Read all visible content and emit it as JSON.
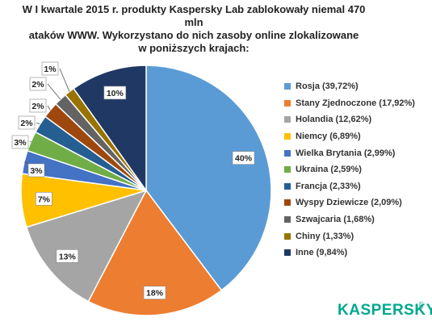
{
  "title_lines": [
    "W I kwartale 2015 r. produkty Kaspersky Lab zablokowały niemal 470 mln",
    "ataków WWW. Wykorzystano do nich zasoby online zlokalizowane",
    "w poniższych krajach:"
  ],
  "logo": {
    "text": "KASPERSKY",
    "sub": "lab"
  },
  "chart_data": {
    "type": "pie",
    "start_angle_deg": 0,
    "slices": [
      {
        "label": "Rosja (39,72%)",
        "value": 39.72,
        "pct_label": "40%",
        "color": "#5b9bd5"
      },
      {
        "label": "Stany Zjednoczone (17,92%)",
        "value": 17.92,
        "pct_label": "18%",
        "color": "#ed7d31"
      },
      {
        "label": "Holandia (12,62%)",
        "value": 12.62,
        "pct_label": "13%",
        "color": "#a5a5a5"
      },
      {
        "label": "Niemcy (6,89%)",
        "value": 6.89,
        "pct_label": "7%",
        "color": "#ffc000"
      },
      {
        "label": "Wielka Brytania (2,99%)",
        "value": 2.99,
        "pct_label": "3%",
        "color": "#4472c4"
      },
      {
        "label": "Ukraina (2,59%)",
        "value": 2.59,
        "pct_label": "3%",
        "color": "#70ad47"
      },
      {
        "label": "Francja (2,33%)",
        "value": 2.33,
        "pct_label": "2%",
        "color": "#255e91"
      },
      {
        "label": "Wyspy Dziewicze (2,09%)",
        "value": 2.09,
        "pct_label": "2%",
        "color": "#9e480e"
      },
      {
        "label": "Szwajcaria (1,68%)",
        "value": 1.68,
        "pct_label": "2%",
        "color": "#636363"
      },
      {
        "label": "Chiny (1,33%)",
        "value": 1.33,
        "pct_label": "1%",
        "color": "#997300"
      },
      {
        "label": "Inne (9,84%)",
        "value": 9.84,
        "pct_label": "10%",
        "color": "#203864"
      }
    ]
  }
}
